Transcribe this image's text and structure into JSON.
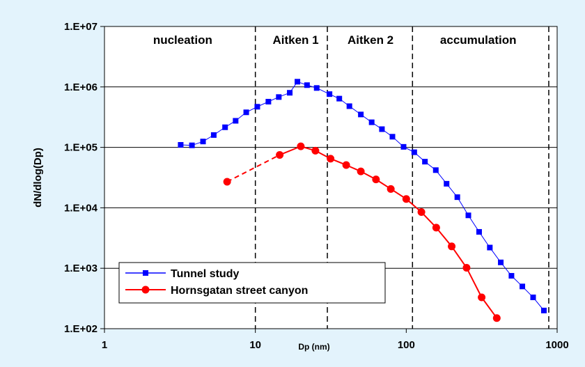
{
  "chart_data": {
    "type": "line",
    "xlabel": "Dp (nm)",
    "ylabel": "dN/dlog(Dp)",
    "x_scale": "log",
    "y_scale": "log",
    "xlim": [
      1,
      1000
    ],
    "ylim": [
      100,
      10000000
    ],
    "x_ticks": [
      {
        "value": 1,
        "label": "1"
      },
      {
        "value": 10,
        "label": "10"
      },
      {
        "value": 100,
        "label": "100"
      },
      {
        "value": 1000,
        "label": "1000"
      }
    ],
    "y_ticks": [
      {
        "value": 100,
        "label": "1.E+02"
      },
      {
        "value": 1000,
        "label": "1.E+03"
      },
      {
        "value": 10000,
        "label": "1.E+04"
      },
      {
        "value": 100000,
        "label": "1.E+05"
      },
      {
        "value": 1000000,
        "label": "1.E+06"
      },
      {
        "value": 10000000,
        "label": "1.E+07"
      }
    ],
    "grid": "horizontal",
    "legend_position": "bottom-left",
    "region_boundaries": [
      10,
      30,
      110,
      880
    ],
    "regions": [
      {
        "label": "nucleation",
        "center": 3.3
      },
      {
        "label": "Aitken 1",
        "center": 18.5
      },
      {
        "label": "Aitken 2",
        "center": 58
      },
      {
        "label": "accumulation",
        "center": 300
      }
    ],
    "series": [
      {
        "name": "Tunnel study",
        "color": "#0000ff",
        "marker": "square",
        "x": [
          3.2,
          3.8,
          4.5,
          5.3,
          6.3,
          7.4,
          8.7,
          10.3,
          12.2,
          14.3,
          16.9,
          19.0,
          22.0,
          25.5,
          31.0,
          36.0,
          42.0,
          50.0,
          59.0,
          69.0,
          81.0,
          96.0,
          113.0,
          133.0,
          157.0,
          185.0,
          218.0,
          258.0,
          304.0,
          358.0,
          423.0,
          498.0,
          588.0,
          693.0,
          817.0
        ],
        "y": [
          110000,
          108000,
          125000,
          160000,
          215000,
          275000,
          380000,
          470000,
          570000,
          680000,
          800000,
          1220000,
          1070000,
          960000,
          760000,
          640000,
          480000,
          350000,
          260000,
          200000,
          150000,
          102000,
          83000,
          58000,
          42000,
          25000,
          15000,
          7500,
          4000,
          2200,
          1250,
          750,
          500,
          330,
          200
        ]
      },
      {
        "name": "Hornsgatan street canyon",
        "color": "#ff0000",
        "marker": "circle",
        "x": [
          6.5,
          14.5,
          20.0,
          25.0,
          31.5,
          40.0,
          50.0,
          63.0,
          79.0,
          100.0,
          126.0,
          158.0,
          200.0,
          251.0,
          316.0,
          398.0
        ],
        "y": [
          27000,
          75000,
          104000,
          88000,
          65000,
          51000,
          40000,
          29500,
          20500,
          14000,
          8500,
          4700,
          2300,
          1020,
          330,
          150
        ],
        "dashed_segments": [
          [
            0,
            1
          ]
        ]
      }
    ]
  }
}
